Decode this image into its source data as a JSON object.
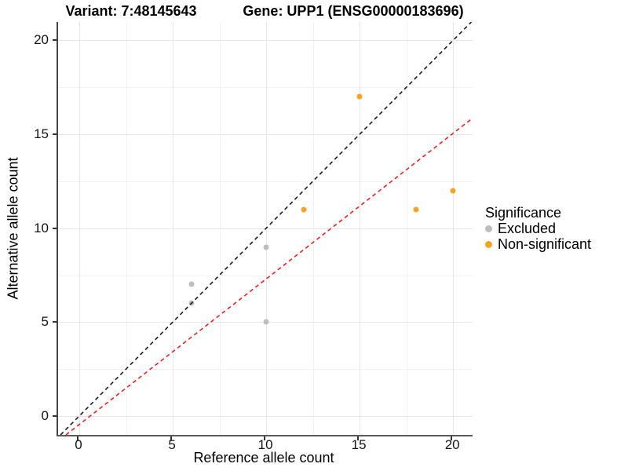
{
  "chart_data": {
    "type": "scatter",
    "titles": {
      "variant": "Variant: 7:48145643",
      "gene": "Gene: UPP1 (ENSG00000183696)"
    },
    "xlabel": "Reference allele count",
    "ylabel": "Alternative allele count",
    "xlim": [
      -1.1,
      21.1
    ],
    "ylim": [
      -1,
      21
    ],
    "x_ticks": [
      0,
      5,
      10,
      15,
      20
    ],
    "y_ticks": [
      0,
      5,
      10,
      15,
      20
    ],
    "minor_x": [
      2.5,
      7.5,
      12.5,
      17.5
    ],
    "minor_y": [
      2.5,
      7.5,
      12.5,
      17.5
    ],
    "grid": true,
    "legend": {
      "title": "Significance",
      "position": "right"
    },
    "series": [
      {
        "name": "Excluded",
        "color": "#bdbdbd",
        "points": [
          [
            6,
            7
          ],
          [
            6,
            6
          ],
          [
            10,
            9
          ],
          [
            10,
            5
          ]
        ]
      },
      {
        "name": "Non-significant",
        "color": "#fba31e",
        "points": [
          [
            12,
            11
          ],
          [
            15,
            17
          ],
          [
            18,
            11
          ],
          [
            20,
            12
          ]
        ]
      }
    ],
    "lines": [
      {
        "name": "identity-line",
        "color": "#1a1a1a",
        "dash": true,
        "slope": 1,
        "intercept": 0
      },
      {
        "name": "expected-ratio-line",
        "color": "#ee2020",
        "dash": true,
        "slope": 0.775,
        "intercept": -0.45
      }
    ]
  }
}
